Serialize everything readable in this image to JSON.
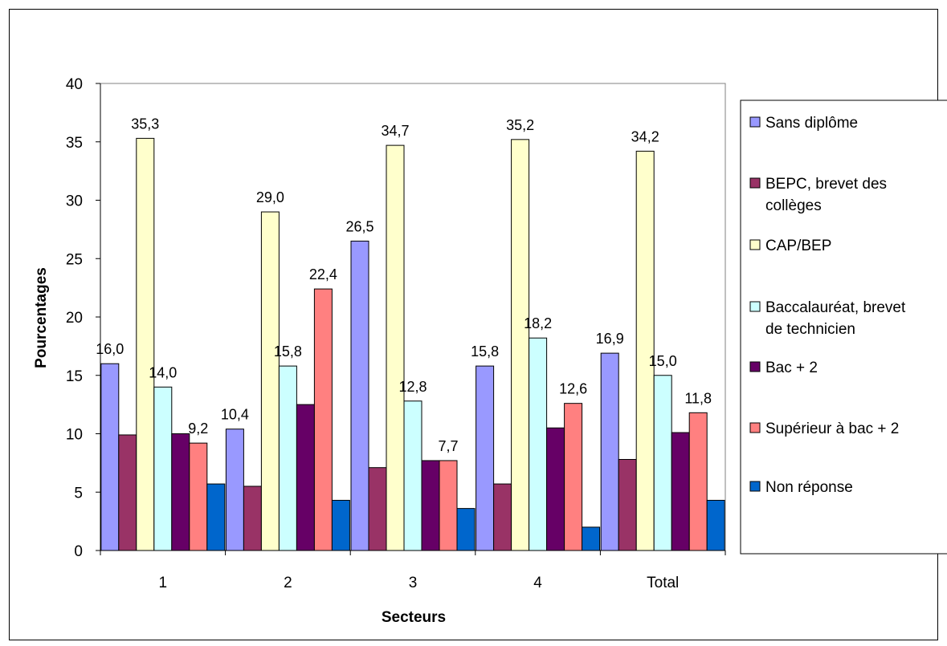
{
  "chart_data": {
    "type": "bar",
    "title": "",
    "xlabel": "Secteurs",
    "ylabel": "Pourcentages",
    "ylim": [
      0,
      40
    ],
    "yticks": [
      "0",
      "5",
      "10",
      "15",
      "20",
      "25",
      "30",
      "35",
      "40"
    ],
    "categories": [
      "1",
      "2",
      "3",
      "4",
      "Total"
    ],
    "grid": false,
    "legend_position": "right",
    "series": [
      {
        "name": "Sans diplôme",
        "color": "#9999ff",
        "values": [
          16.0,
          10.4,
          26.5,
          15.8,
          16.9
        ],
        "labels": [
          "16,0",
          "10,4",
          "26,5",
          "15,8",
          "16,9"
        ]
      },
      {
        "name": "BEPC, brevet des collèges",
        "color": "#993366",
        "values": [
          9.9,
          5.5,
          7.1,
          5.7,
          7.8
        ],
        "labels": [
          "",
          "",
          "",
          "",
          ""
        ]
      },
      {
        "name": "CAP/BEP",
        "color": "#ffffcc",
        "values": [
          35.3,
          29.0,
          34.7,
          35.2,
          34.2
        ],
        "labels": [
          "35,3",
          "29,0",
          "34,7",
          "35,2",
          "34,2"
        ]
      },
      {
        "name": "Baccalauréat, brevet de technicien",
        "color": "#ccffff",
        "values": [
          14.0,
          15.8,
          12.8,
          18.2,
          15.0
        ],
        "labels": [
          "14,0",
          "15,8",
          "12,8",
          "18,2",
          "15,0"
        ]
      },
      {
        "name": "Bac + 2",
        "color": "#660066",
        "values": [
          10.0,
          12.5,
          7.7,
          10.5,
          10.1
        ],
        "labels": [
          "",
          "",
          "",
          "",
          ""
        ]
      },
      {
        "name": "Supérieur à bac + 2",
        "color": "#ff8080",
        "values": [
          9.2,
          22.4,
          7.7,
          12.6,
          11.8
        ],
        "labels": [
          "9,2",
          "22,4",
          "7,7",
          "12,6",
          "11,8"
        ]
      },
      {
        "name": "Non réponse",
        "color": "#0066cc",
        "values": [
          5.7,
          4.3,
          3.6,
          2.0,
          4.3
        ],
        "labels": [
          "",
          "",
          "",
          "",
          ""
        ]
      }
    ]
  }
}
